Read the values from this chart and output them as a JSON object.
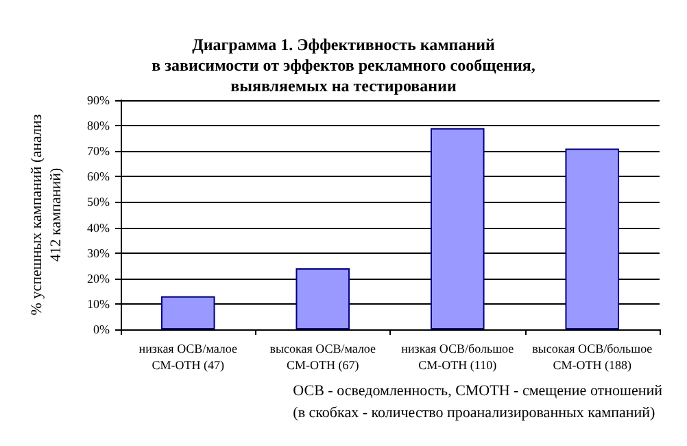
{
  "chart_data": {
    "type": "bar",
    "title": "Диаграмма 1. Эффективность кампаний\nв зависимости от эффектов рекламного сообщения,\nвыявляемых на тестировании",
    "ylabel": "% успешных кампаний (анализ\n412 кампаний)",
    "categories": [
      "низкая ОСВ/малое\nСМ-ОТН (47)",
      "высокая ОСВ/малое\nСМ-ОТН (67)",
      "низкая ОСВ/большое\nСМ-ОТН (110)",
      "высокая ОСВ/большое\nСМ-ОТН (188)"
    ],
    "values": [
      13,
      24,
      79,
      71
    ],
    "color": "#9999ff",
    "ylim": [
      0,
      90
    ],
    "yticks": [
      {
        "value": 0,
        "label": "0%"
      },
      {
        "value": 10,
        "label": "10%"
      },
      {
        "value": 20,
        "label": "20%"
      },
      {
        "value": 30,
        "label": "30%"
      },
      {
        "value": 40,
        "label": "40%"
      },
      {
        "value": 50,
        "label": "50%"
      },
      {
        "value": 60,
        "label": "60%"
      },
      {
        "value": 70,
        "label": "70%"
      },
      {
        "value": 80,
        "label": "80%"
      },
      {
        "value": 90,
        "label": "90%"
      }
    ],
    "grid": "y",
    "annotations": [
      "ОСВ - осведомленность, СМОТН - смещение отношений\n(в скобках - количество проанализированных кампаний)"
    ]
  }
}
